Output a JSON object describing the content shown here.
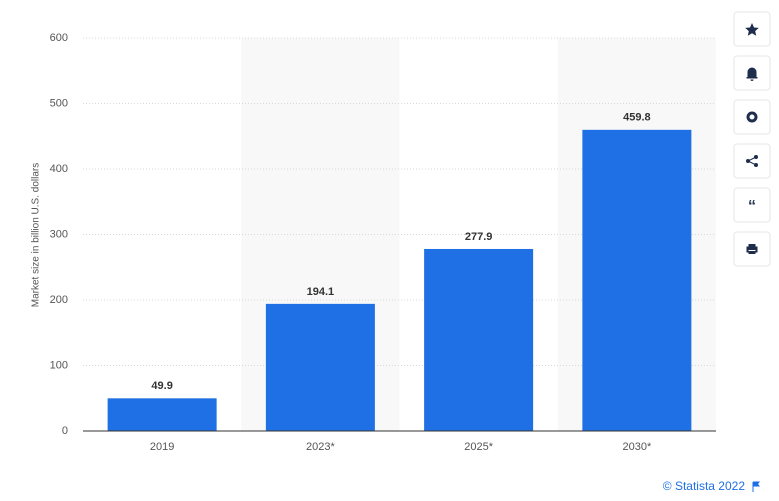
{
  "chart_data": {
    "type": "bar",
    "y_label": "Market size in billion U.S. dollars",
    "categories": [
      "2019",
      "2023*",
      "2025*",
      "2030*"
    ],
    "values": [
      49.9,
      194.1,
      277.9,
      459.8
    ],
    "color": "#1f6fe5",
    "ylim": [
      0,
      600
    ],
    "yticks": [
      0,
      100,
      200,
      300,
      400,
      500,
      600
    ],
    "grid": true
  },
  "credit": "© Statista 2022"
}
